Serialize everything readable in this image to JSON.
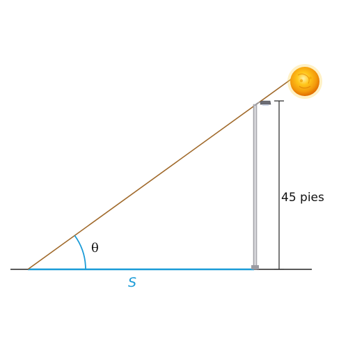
{
  "diagram": {
    "angle_label": "θ",
    "shadow_label": "S",
    "height_label": "45 pies"
  },
  "colors": {
    "sun_ray": "#a0692a",
    "shadow": "#1a9bd7",
    "ground": "#222222",
    "dimension": "#333333",
    "angle_arc": "#1a9bd7",
    "pole": "#b8b8bc",
    "sun_core": "#f5a80f",
    "sun_rim": "#e47a00"
  },
  "icons": {
    "sun": "sun-icon",
    "street_lamp": "street-lamp-icon"
  }
}
